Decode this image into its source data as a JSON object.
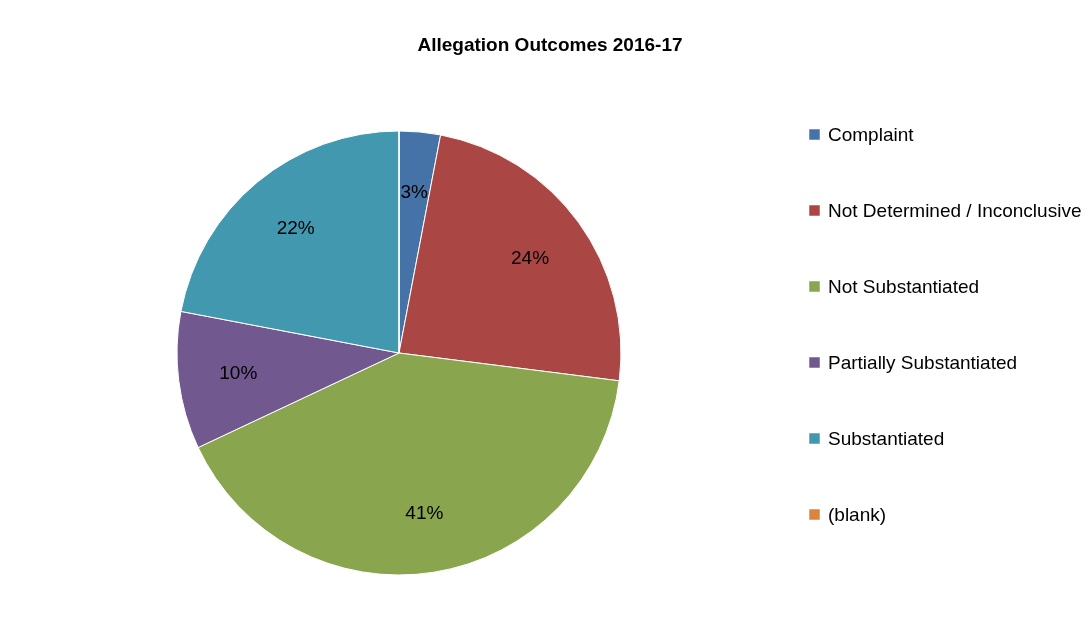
{
  "chart_data": {
    "type": "pie",
    "title": "Allegation Outcomes 2016-17",
    "categories": [
      "Complaint",
      "Not Determined / Inconclusive",
      "Not Substantiated",
      "Partially Substantiated",
      "Substantiated",
      "(blank)"
    ],
    "values": [
      3,
      24,
      41,
      10,
      22,
      0
    ],
    "colors": [
      "#4572a7",
      "#aa4643",
      "#89a54e",
      "#71588f",
      "#4198af",
      "#db843d"
    ],
    "value_labels": [
      "3%",
      "24%",
      "41%",
      "10%",
      "22%",
      null
    ],
    "legend": "right"
  }
}
